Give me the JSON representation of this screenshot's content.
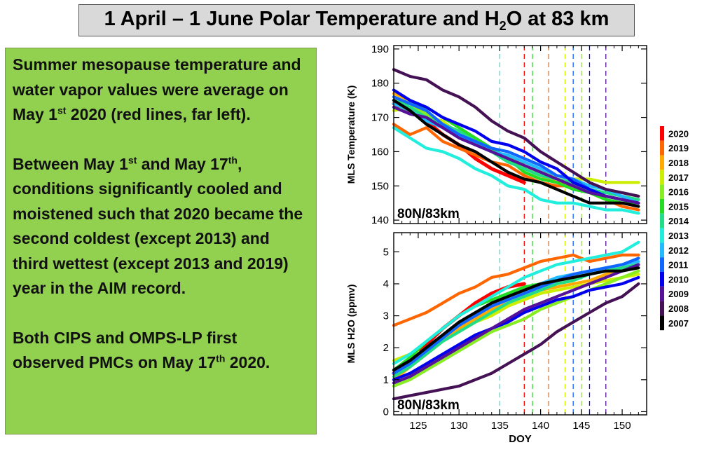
{
  "title": {
    "pre": "1 April – 1 June Polar Temperature and H",
    "sub": "2",
    "post": "O at 83 km"
  },
  "paragraphs": [
    [
      {
        "t": "Summer mesopause temperature and water vapor values were average on May 1"
      },
      {
        "sup": "st"
      },
      {
        "t": " 2020 (red lines, far left)."
      }
    ],
    [
      {
        "t": "Between May 1"
      },
      {
        "sup": "st"
      },
      {
        "t": " and May 17"
      },
      {
        "sup": "th"
      },
      {
        "t": ", conditions significantly cooled and moistened such that 2020 became the second coldest (except 2013) and third wettest (except 2013 and 2019) year in the AIM record."
      }
    ],
    [
      {
        "t": "Both CIPS and OMPS-LP first observed PMCs on May 17"
      },
      {
        "sup": "th"
      },
      {
        "t": " 2020."
      }
    ]
  ],
  "chart_data": [
    {
      "type": "line",
      "panel": "temperature",
      "ylabel": "MLS Temperature (K)",
      "xlabel": "",
      "annotation": "80N/83km",
      "xlim": [
        122,
        153
      ],
      "ylim": [
        139,
        191
      ],
      "xticks": [
        125,
        130,
        135,
        140,
        145,
        150
      ],
      "yticks": [
        140,
        150,
        160,
        170,
        180,
        190
      ],
      "x": [
        122,
        124,
        126,
        128,
        130,
        132,
        134,
        136,
        138,
        140,
        142,
        144,
        146,
        148,
        150,
        152
      ],
      "series": [
        {
          "name": "2020",
          "color": "#ff0000",
          "values": [
            174,
            172,
            169,
            165,
            162,
            158,
            155,
            153,
            151,
            null,
            null,
            null,
            null,
            null,
            null,
            null
          ]
        },
        {
          "name": "2019",
          "color": "#ff6600",
          "values": [
            168,
            165,
            167,
            163,
            161,
            159,
            157,
            156,
            153,
            151,
            150,
            150,
            148,
            146,
            144,
            143
          ]
        },
        {
          "name": "2018",
          "color": "#ffaa00",
          "values": [
            177,
            175,
            171,
            168,
            166,
            163,
            161,
            158,
            155,
            153,
            151,
            151,
            149,
            147,
            146,
            145
          ]
        },
        {
          "name": "2017",
          "color": "#ccee00",
          "values": [
            172,
            173,
            170,
            169,
            165,
            162,
            160,
            157,
            156,
            154,
            153,
            152,
            152,
            151,
            151,
            151
          ]
        },
        {
          "name": "2016",
          "color": "#88ee22",
          "values": [
            175,
            174,
            171,
            168,
            165,
            163,
            160,
            159,
            156,
            154,
            152,
            151,
            148,
            147,
            146,
            146
          ]
        },
        {
          "name": "2015",
          "color": "#22dd22",
          "values": [
            176,
            174,
            173,
            170,
            167,
            164,
            161,
            158,
            154,
            152,
            151,
            149,
            148,
            146,
            145,
            145
          ]
        },
        {
          "name": "2014",
          "color": "#22dd88",
          "values": [
            175,
            173,
            170,
            168,
            166,
            163,
            160,
            157,
            155,
            153,
            152,
            151,
            149,
            148,
            147,
            146
          ]
        },
        {
          "name": "2013",
          "color": "#22eedd",
          "values": [
            167,
            164,
            161,
            160,
            158,
            155,
            153,
            150,
            149,
            146,
            145,
            145,
            144,
            143,
            143,
            142
          ]
        },
        {
          "name": "2012",
          "color": "#22bbff",
          "values": [
            174,
            172,
            169,
            167,
            165,
            162,
            160,
            159,
            157,
            155,
            153,
            152,
            150,
            149,
            147,
            145
          ]
        },
        {
          "name": "2011",
          "color": "#1166ff",
          "values": [
            176,
            174,
            172,
            168,
            165,
            163,
            161,
            160,
            158,
            156,
            153,
            152,
            149,
            147,
            146,
            145
          ]
        },
        {
          "name": "2010",
          "color": "#0000ee",
          "values": [
            178,
            175,
            173,
            170,
            168,
            166,
            163,
            162,
            160,
            157,
            155,
            151,
            149,
            147,
            146,
            145
          ]
        },
        {
          "name": "2009",
          "color": "#551199",
          "values": [
            173,
            171,
            170,
            167,
            164,
            162,
            160,
            158,
            156,
            154,
            152,
            150,
            148,
            147,
            146,
            145
          ]
        },
        {
          "name": "2008",
          "color": "#441155",
          "values": [
            184,
            182,
            181,
            178,
            176,
            173,
            169,
            166,
            164,
            160,
            157,
            154,
            151,
            149,
            148,
            147
          ]
        },
        {
          "name": "2007",
          "color": "#000000",
          "values": [
            175,
            172,
            168,
            165,
            162,
            160,
            157,
            154,
            152,
            151,
            149,
            147,
            145,
            145,
            145,
            144
          ]
        }
      ],
      "dashed_lines": [
        {
          "x": 135,
          "color": "#22eedd"
        },
        {
          "x": 138,
          "color": "#ff0000"
        },
        {
          "x": 139,
          "color": "#22dd22"
        },
        {
          "x": 141,
          "color": "#ff6600"
        },
        {
          "x": 143,
          "color": "#ccee00"
        },
        {
          "x": 144,
          "color": "#1166ff"
        },
        {
          "x": 145,
          "color": "#88ee22"
        },
        {
          "x": 146,
          "color": "#0000ee"
        },
        {
          "x": 148,
          "color": "#551199"
        }
      ]
    },
    {
      "type": "line",
      "panel": "water-vapor",
      "ylabel": "MLS H2O (ppmv)",
      "xlabel": "DOY",
      "annotation": "80N/83km",
      "xlim": [
        122,
        153
      ],
      "ylim": [
        -0.1,
        5.6
      ],
      "xticks": [
        125,
        130,
        135,
        140,
        145,
        150
      ],
      "yticks": [
        0,
        1,
        2,
        3,
        4,
        5
      ],
      "x": [
        122,
        124,
        126,
        128,
        130,
        132,
        134,
        136,
        138,
        140,
        142,
        144,
        146,
        148,
        150,
        152
      ],
      "series": [
        {
          "name": "2020",
          "color": "#ff0000",
          "values": [
            1.2,
            1.6,
            2.1,
            2.6,
            3.0,
            3.4,
            3.7,
            3.9,
            4.0,
            null,
            null,
            null,
            null,
            null,
            null,
            null
          ]
        },
        {
          "name": "2019",
          "color": "#ff6600",
          "values": [
            2.7,
            2.9,
            3.1,
            3.4,
            3.7,
            3.9,
            4.2,
            4.3,
            4.5,
            4.7,
            4.8,
            4.9,
            4.7,
            4.8,
            4.9,
            4.9
          ]
        },
        {
          "name": "2018",
          "color": "#ffaa00",
          "values": [
            1.0,
            1.4,
            1.8,
            2.2,
            2.6,
            2.9,
            3.2,
            3.4,
            3.6,
            3.8,
            3.9,
            4.0,
            4.1,
            4.3,
            4.5,
            4.6
          ]
        },
        {
          "name": "2017",
          "color": "#ccee00",
          "values": [
            1.6,
            1.8,
            1.9,
            2.2,
            2.5,
            2.8,
            3.0,
            3.3,
            3.5,
            3.7,
            3.8,
            3.9,
            4.0,
            4.1,
            4.2,
            4.3
          ]
        },
        {
          "name": "2016",
          "color": "#88ee22",
          "values": [
            0.8,
            1.0,
            1.3,
            1.6,
            1.9,
            2.2,
            2.5,
            2.7,
            2.9,
            3.2,
            3.4,
            3.6,
            3.8,
            4.0,
            4.2,
            4.4
          ]
        },
        {
          "name": "2015",
          "color": "#22dd22",
          "values": [
            1.3,
            1.7,
            2.2,
            2.6,
            3.0,
            3.3,
            3.5,
            3.7,
            3.9,
            4.0,
            4.1,
            4.2,
            4.3,
            4.4,
            4.5,
            4.6
          ]
        },
        {
          "name": "2014",
          "color": "#22dd88",
          "values": [
            1.1,
            1.4,
            1.8,
            2.2,
            2.5,
            2.8,
            3.1,
            3.4,
            3.6,
            3.8,
            4.0,
            4.1,
            4.3,
            4.4,
            4.5,
            4.6
          ]
        },
        {
          "name": "2013",
          "color": "#22eedd",
          "values": [
            1.5,
            1.8,
            2.2,
            2.6,
            3.0,
            3.3,
            3.6,
            3.9,
            4.2,
            4.4,
            4.6,
            4.7,
            4.8,
            4.9,
            5.0,
            5.3
          ]
        },
        {
          "name": "2012",
          "color": "#22bbff",
          "values": [
            1.3,
            1.6,
            2.0,
            2.4,
            2.8,
            3.1,
            3.4,
            3.6,
            3.8,
            4.0,
            4.2,
            4.3,
            4.4,
            4.5,
            4.6,
            4.7
          ]
        },
        {
          "name": "2011",
          "color": "#1166ff",
          "values": [
            1.2,
            1.5,
            1.9,
            2.3,
            2.7,
            3.0,
            3.3,
            3.5,
            3.7,
            3.9,
            4.1,
            4.3,
            4.4,
            4.5,
            4.6,
            4.8
          ]
        },
        {
          "name": "2010",
          "color": "#0000ee",
          "values": [
            1.0,
            1.2,
            1.5,
            1.8,
            2.1,
            2.4,
            2.6,
            2.8,
            3.1,
            3.3,
            3.5,
            3.6,
            3.8,
            3.9,
            4.0,
            4.2
          ]
        },
        {
          "name": "2009",
          "color": "#551199",
          "values": [
            0.9,
            1.1,
            1.4,
            1.7,
            2.0,
            2.3,
            2.6,
            2.9,
            3.2,
            3.4,
            3.6,
            3.8,
            4.0,
            4.2,
            4.4,
            4.6
          ]
        },
        {
          "name": "2008",
          "color": "#441155",
          "values": [
            0.4,
            0.5,
            0.6,
            0.7,
            0.8,
            1.0,
            1.2,
            1.5,
            1.8,
            2.1,
            2.5,
            2.8,
            3.1,
            3.4,
            3.6,
            4.0
          ]
        },
        {
          "name": "2007",
          "color": "#000000",
          "values": [
            1.3,
            1.6,
            2.0,
            2.4,
            2.8,
            3.1,
            3.4,
            3.6,
            3.8,
            4.0,
            4.1,
            4.2,
            4.3,
            4.4,
            4.4,
            4.5
          ]
        }
      ],
      "dashed_lines": [
        {
          "x": 135,
          "color": "#22eedd"
        },
        {
          "x": 138,
          "color": "#ff0000"
        },
        {
          "x": 139,
          "color": "#22dd22"
        },
        {
          "x": 141,
          "color": "#ff6600"
        },
        {
          "x": 143,
          "color": "#ccee00"
        },
        {
          "x": 144,
          "color": "#1166ff"
        },
        {
          "x": 145,
          "color": "#88ee22"
        },
        {
          "x": 146,
          "color": "#0000ee"
        },
        {
          "x": 148,
          "color": "#551199"
        }
      ]
    }
  ],
  "legend": {
    "placement": "right",
    "items": [
      {
        "label": "2020",
        "color": "#ff0000"
      },
      {
        "label": "2019",
        "color": "#ff6600"
      },
      {
        "label": "2018",
        "color": "#ffaa00"
      },
      {
        "label": "2017",
        "color": "#ccee00"
      },
      {
        "label": "2016",
        "color": "#88ee22"
      },
      {
        "label": "2015",
        "color": "#22dd22"
      },
      {
        "label": "2014",
        "color": "#22dd88"
      },
      {
        "label": "2013",
        "color": "#22eedd"
      },
      {
        "label": "2012",
        "color": "#22bbff"
      },
      {
        "label": "2011",
        "color": "#1166ff"
      },
      {
        "label": "2010",
        "color": "#0000ee"
      },
      {
        "label": "2009",
        "color": "#551199"
      },
      {
        "label": "2008",
        "color": "#441155"
      },
      {
        "label": "2007",
        "color": "#000000"
      }
    ]
  }
}
